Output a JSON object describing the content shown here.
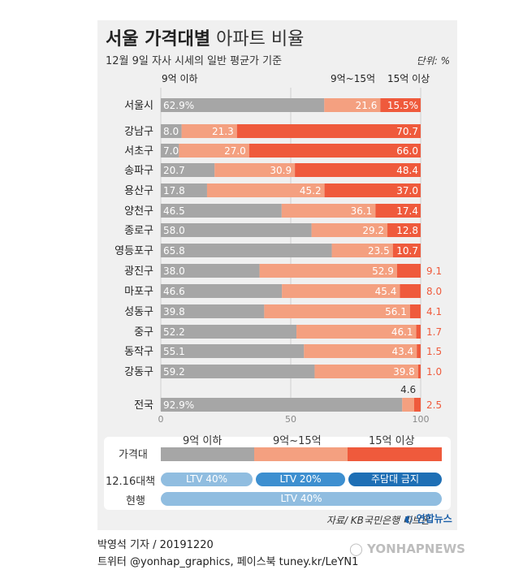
{
  "header": {
    "title_bold": "서울 가격대별",
    "title_light": "아파트 비율",
    "subtitle": "12월 9일 자사 시세의 일반 평균가 기준",
    "unit": "단위: %"
  },
  "colors": {
    "gray": "#a6a6a6",
    "salmon": "#f4a080",
    "red": "#ef5a3c",
    "pill_light": "#90bde0",
    "pill_mid": "#3d8fd0",
    "pill_dark": "#1e6fb5"
  },
  "chart_data": {
    "type": "bar",
    "stacked": true,
    "orientation": "horizontal",
    "series": [
      {
        "name": "9억 이하",
        "values": [
          62.9,
          8.0,
          7.0,
          20.7,
          17.8,
          46.5,
          58.0,
          65.8,
          38.0,
          46.6,
          39.8,
          52.2,
          55.1,
          59.2,
          92.9
        ]
      },
      {
        "name": "9억~15억",
        "values": [
          21.6,
          21.3,
          27.0,
          30.9,
          45.2,
          36.1,
          29.2,
          23.5,
          52.9,
          45.4,
          56.1,
          46.1,
          43.4,
          39.8,
          4.6
        ]
      },
      {
        "name": "15억 이상",
        "values": [
          15.5,
          70.7,
          66.0,
          48.4,
          37.0,
          17.4,
          12.8,
          10.7,
          9.1,
          8.0,
          4.1,
          1.7,
          1.5,
          1.0,
          2.5
        ]
      }
    ],
    "categories": [
      "서울시",
      "강남구",
      "서초구",
      "송파구",
      "용산구",
      "양천구",
      "종로구",
      "영등포구",
      "광진구",
      "마포구",
      "성동구",
      "중구",
      "동작구",
      "강동구",
      "전국"
    ],
    "labels": {
      "gray": [
        "62.9%",
        "8.0",
        "7.0",
        "20.7",
        "17.8",
        "46.5",
        "58.0",
        "65.8",
        "38.0",
        "46.6",
        "39.8",
        "52.2",
        "55.1",
        "59.2",
        "92.9%"
      ],
      "salmon": [
        "21.6",
        "21.3",
        "27.0",
        "30.9",
        "45.2",
        "36.1",
        "29.2",
        "23.5",
        "52.9",
        "45.4",
        "56.1",
        "46.1",
        "43.4",
        "39.8",
        "4.6"
      ],
      "red": [
        "15.5%",
        "70.7",
        "66.0",
        "48.4",
        "37.0",
        "17.4",
        "12.8",
        "10.7",
        "9.1",
        "8.0",
        "4.1",
        "1.7",
        "1.5",
        "1.0",
        "2.5"
      ]
    },
    "xlim": [
      0,
      100
    ],
    "xticks": [
      "0",
      "50",
      "100"
    ],
    "legend": [
      "9억 이하",
      "9억~15억",
      "15억 이상"
    ]
  },
  "price_band": {
    "label": "가격대",
    "segments": [
      "9억 이하",
      "9억~15억",
      "15억 이상"
    ]
  },
  "policy": {
    "row1_label": "12.16대책",
    "row1_pills": [
      "LTV 40%",
      "LTV 20%",
      "주담대 금지"
    ],
    "row2_label": "현행",
    "row2_pill": "LTV 40%"
  },
  "footer": {
    "source": "자료/ KB국민은행 리브온",
    "logo": "연합뉴스",
    "credit_line1": "박영석 기자 / 20191220",
    "credit_line2": "트위터 @yonhap_graphics, 페이스북 tuney.kr/LeYN1",
    "watermark": "YONHAPNEWS"
  }
}
